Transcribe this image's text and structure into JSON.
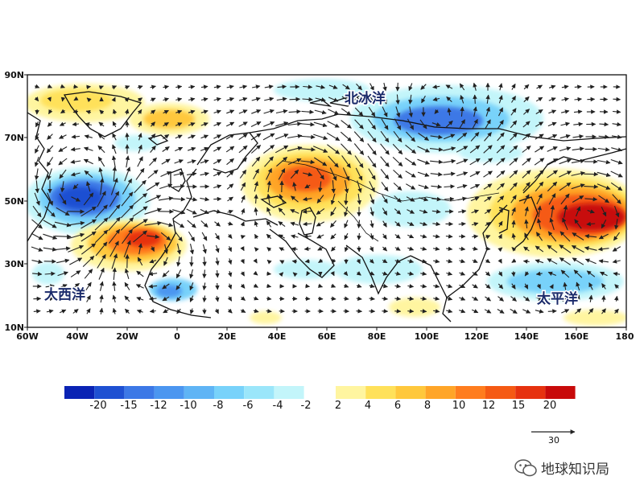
{
  "map": {
    "lat_labels": [
      "90N",
      "70N",
      "50N",
      "30N",
      "10N"
    ],
    "lon_labels": [
      "60W",
      "40W",
      "20W",
      "0",
      "20E",
      "40E",
      "60E",
      "80E",
      "100E",
      "120E",
      "140E",
      "160E",
      "180"
    ],
    "ocean_labels": {
      "atlantic": "大西洋",
      "arctic": "北冰洋",
      "pacific": "太平洋"
    }
  },
  "colorbar": {
    "negative_labels": [
      "-20",
      "-15",
      "-12",
      "-10",
      "-8",
      "-6",
      "-4",
      "-2"
    ],
    "positive_labels": [
      "2",
      "4",
      "6",
      "8",
      "10",
      "12",
      "15",
      "20"
    ],
    "negative_colors": [
      "#0a23b4",
      "#1e50d2",
      "#3c78e6",
      "#4b96f0",
      "#5fb4f5",
      "#78d2fa",
      "#9be6fa",
      "#c3f5fa"
    ],
    "positive_colors": [
      "#fff5a0",
      "#ffe15a",
      "#ffc83c",
      "#ffa528",
      "#ff7d1e",
      "#f55a14",
      "#e6320f",
      "#c80a0a"
    ]
  },
  "reference_vector": {
    "label": "30"
  },
  "watermark": {
    "text": "地球知识局",
    "icon": "wechat-icon"
  }
}
